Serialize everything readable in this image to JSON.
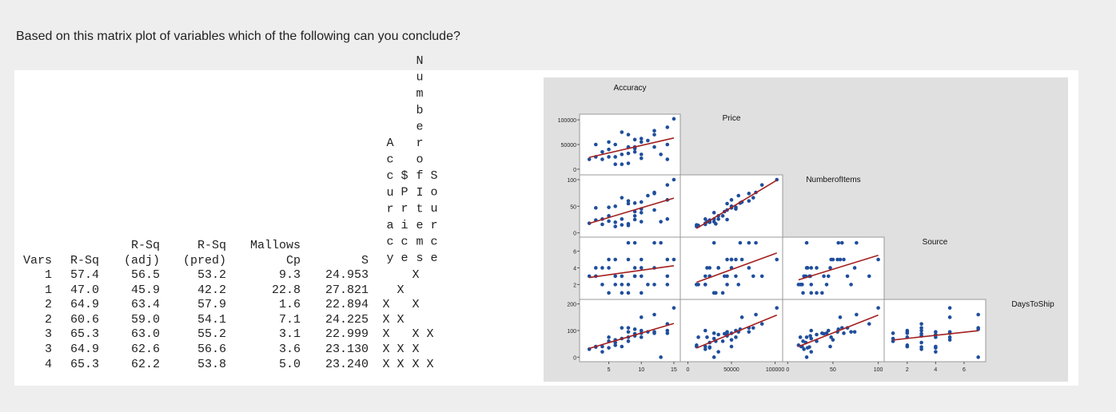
{
  "question": "Based on this matrix plot of variables which of the following can you conclude?",
  "best_subsets": {
    "header_top": [
      "",
      "",
      "R-Sq",
      "R-Sq",
      "Mallows",
      ""
    ],
    "header_bottom": [
      "Vars",
      "R-Sq",
      "(adj)",
      "(pred)",
      "Cp",
      "S"
    ],
    "predictors": [
      "Accuracy",
      "$Price",
      "NumberofItems",
      "Source"
    ],
    "rows": [
      {
        "vars": "1",
        "rsq": "57.4",
        "adj": "56.5",
        "pred": "53.2",
        "cp": "9.3",
        "s": "24.953",
        "marks": [
          "",
          "",
          "X",
          ""
        ]
      },
      {
        "vars": "1",
        "rsq": "47.0",
        "adj": "45.9",
        "pred": "42.2",
        "cp": "22.8",
        "s": "27.821",
        "marks": [
          "",
          "X",
          "",
          ""
        ]
      },
      {
        "vars": "2",
        "rsq": "64.9",
        "adj": "63.4",
        "pred": "57.9",
        "cp": "1.6",
        "s": "22.894",
        "marks": [
          "X",
          "",
          "X",
          ""
        ]
      },
      {
        "vars": "2",
        "rsq": "60.6",
        "adj": "59.0",
        "pred": "54.1",
        "cp": "7.1",
        "s": "24.225",
        "marks": [
          "X",
          "X",
          "",
          ""
        ]
      },
      {
        "vars": "3",
        "rsq": "65.3",
        "adj": "63.0",
        "pred": "55.2",
        "cp": "3.1",
        "s": "22.999",
        "marks": [
          "X",
          "",
          "X",
          "X"
        ]
      },
      {
        "vars": "3",
        "rsq": "64.9",
        "adj": "62.6",
        "pred": "56.6",
        "cp": "3.6",
        "s": "23.130",
        "marks": [
          "X",
          "X",
          "X",
          ""
        ]
      },
      {
        "vars": "4",
        "rsq": "65.3",
        "adj": "62.2",
        "pred": "53.8",
        "cp": "5.0",
        "s": "23.240",
        "marks": [
          "X",
          "X",
          "X",
          "X"
        ]
      }
    ]
  },
  "chart_data": {
    "type": "scatter",
    "subtype": "matrix-plot-lower-triangle",
    "variables": [
      "Accuracy",
      "Price",
      "NumberofItems",
      "Source",
      "DaysToShip"
    ],
    "axis_ranges": {
      "Accuracy": [
        1,
        15.5
      ],
      "Price": [
        -5000,
        105000
      ],
      "NumberofItems": [
        -2,
        103
      ],
      "Source": [
        0.6,
        7.3
      ],
      "DaysToShip": [
        -5,
        205
      ]
    },
    "y_ticks": {
      "Price": [
        "0",
        "50000",
        "100000"
      ],
      "NumberofItems": [
        "0",
        "50",
        "100"
      ],
      "Source": [
        "2",
        "4",
        "6"
      ],
      "DaysToShip": [
        "0",
        "100",
        "200"
      ]
    },
    "x_ticks": {
      "Accuracy": [
        "5",
        "10",
        "15"
      ],
      "Price": [
        "0",
        "50000",
        "100000"
      ],
      "NumberofItems": [
        "0",
        "50",
        "100"
      ],
      "Source": [
        "2",
        "4",
        "6"
      ]
    },
    "fit_line": "linear",
    "point_color": "#1f4e9c",
    "line_color": "#a31f1f",
    "background_color": "#e0e0e0",
    "observations": [
      [
        2,
        20000,
        18,
        3,
        30
      ],
      [
        3,
        50000,
        47,
        4,
        40
      ],
      [
        4,
        35000,
        26,
        4,
        20
      ],
      [
        4,
        20000,
        16,
        2,
        40
      ],
      [
        5,
        55000,
        48,
        5,
        75
      ],
      [
        5,
        40000,
        32,
        1,
        60
      ],
      [
        5,
        25000,
        22,
        4,
        35
      ],
      [
        6,
        50000,
        50,
        5,
        65
      ],
      [
        6,
        10000,
        12,
        2,
        45
      ],
      [
        6,
        25000,
        20,
        3,
        55
      ],
      [
        7,
        75000,
        66,
        3,
        110
      ],
      [
        7,
        30000,
        26,
        1,
        70
      ],
      [
        7,
        10000,
        15,
        2,
        40
      ],
      [
        8,
        70000,
        60,
        7,
        110
      ],
      [
        8,
        45000,
        55,
        5,
        95
      ],
      [
        8,
        32000,
        17,
        1,
        60
      ],
      [
        8,
        12000,
        14,
        2,
        75
      ],
      [
        9,
        60000,
        56,
        7,
        105
      ],
      [
        9,
        35000,
        32,
        4,
        85
      ],
      [
        9,
        45000,
        25,
        3,
        80
      ],
      [
        10,
        62000,
        58,
        5,
        150
      ],
      [
        10,
        30000,
        38,
        1,
        90
      ],
      [
        10,
        22000,
        21,
        4,
        75
      ],
      [
        10,
        55000,
        45,
        3,
        100
      ],
      [
        11,
        58000,
        70,
        2,
        95
      ],
      [
        12,
        78000,
        76,
        7,
        160
      ],
      [
        12,
        70000,
        74,
        4,
        95
      ],
      [
        12,
        45000,
        43,
        2,
        90
      ],
      [
        13,
        30000,
        21,
        7,
        0
      ],
      [
        14,
        85000,
        90,
        3,
        125
      ],
      [
        14,
        50000,
        62,
        5,
        90
      ],
      [
        14,
        20000,
        26,
        2,
        100
      ],
      [
        15,
        102000,
        100,
        5,
        185
      ],
      [
        3,
        25000,
        24,
        3,
        38
      ],
      [
        9,
        42000,
        40,
        3,
        88
      ]
    ]
  }
}
